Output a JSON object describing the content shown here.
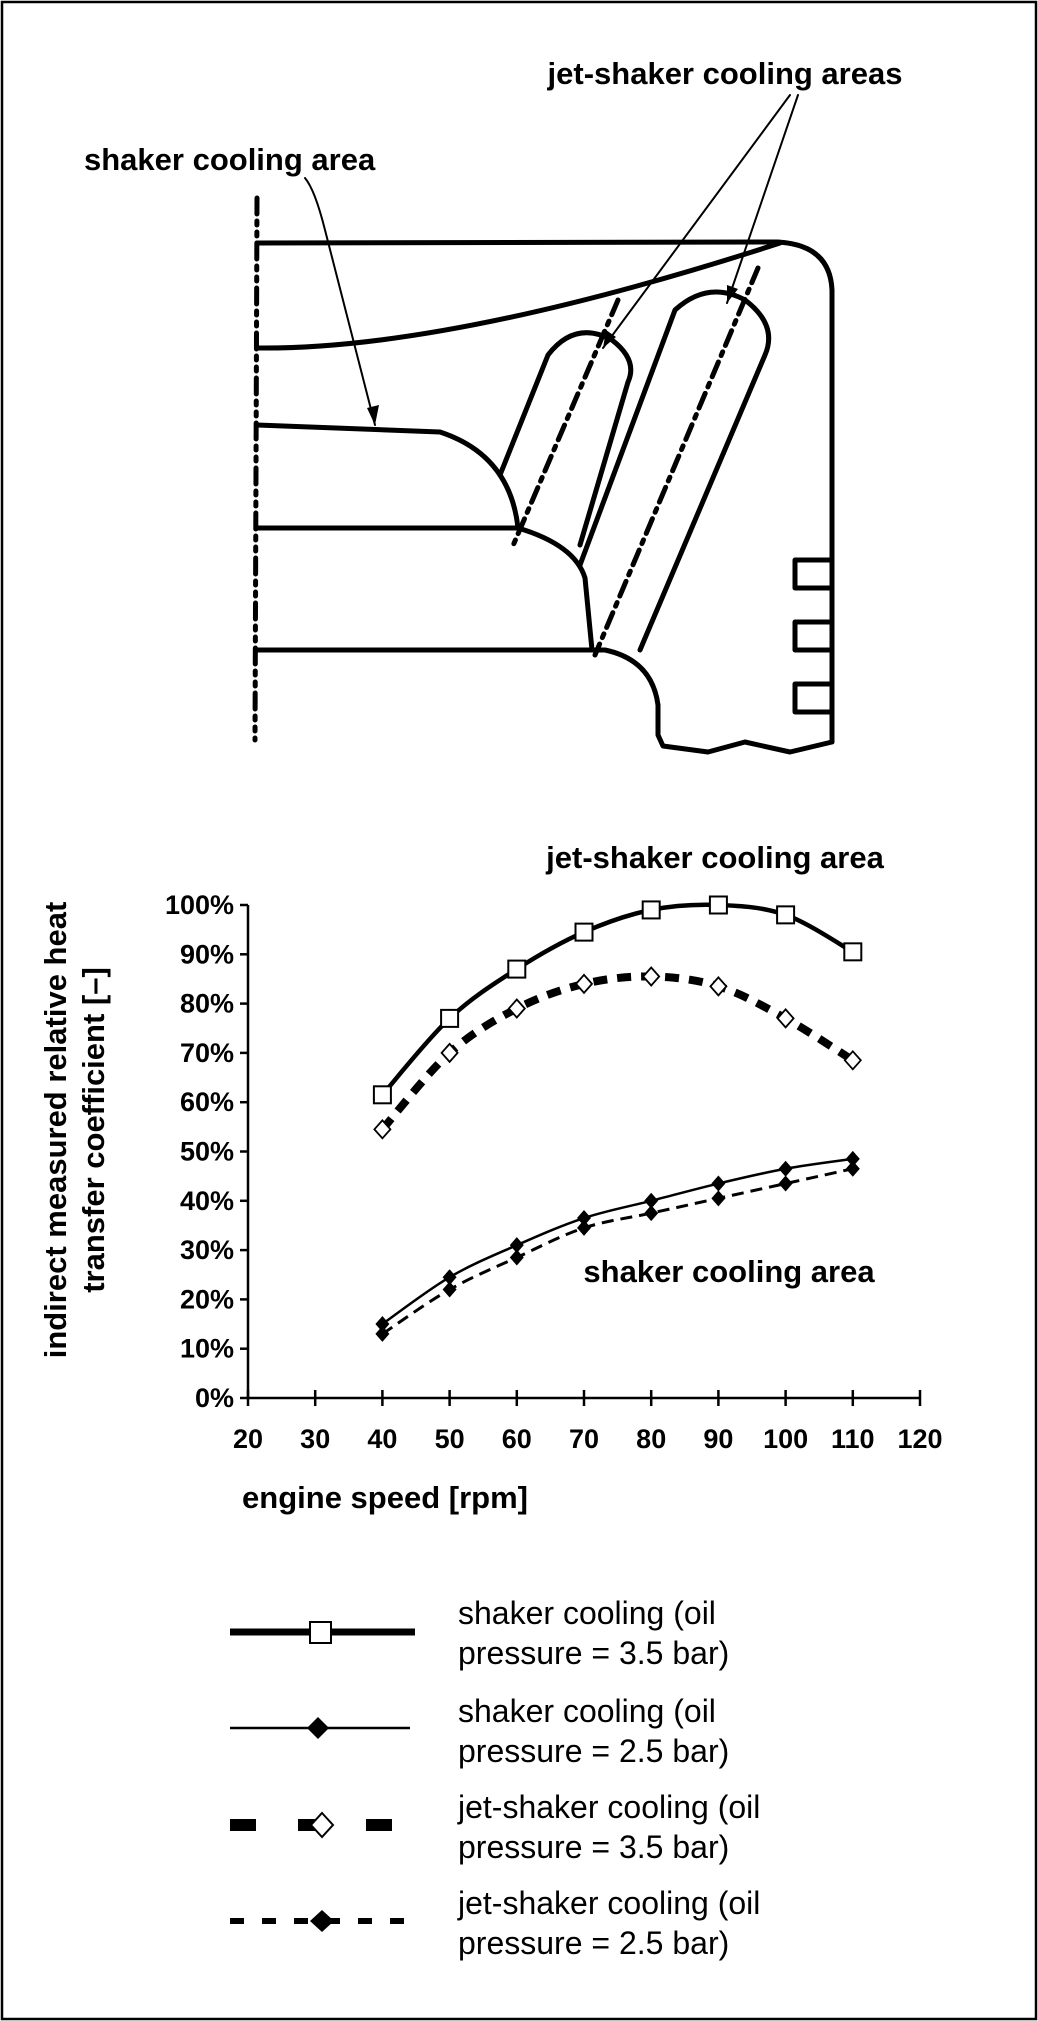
{
  "diagram": {
    "label_jet_shaker": "jet-shaker cooling areas",
    "label_shaker": "shaker cooling area"
  },
  "chart_data": {
    "type": "line",
    "annotations": [
      "jet-shaker cooling area",
      "shaker cooling area"
    ],
    "xlabel": "engine speed [rpm]",
    "ylabel_lines": [
      "indirect measured relative heat",
      "transfer coefficient [–]"
    ],
    "xlim": [
      20,
      120
    ],
    "ylim": [
      0,
      100
    ],
    "x_ticks": [
      20,
      30,
      40,
      50,
      60,
      70,
      80,
      90,
      100,
      110,
      120
    ],
    "x_tick_labels": [
      "20",
      "30",
      "40",
      "50",
      "60",
      "70",
      "80",
      "90",
      "100",
      "110",
      "120"
    ],
    "y_ticks": [
      0,
      10,
      20,
      30,
      40,
      50,
      60,
      70,
      80,
      90,
      100
    ],
    "y_tick_labels": [
      "0%",
      "10%",
      "20%",
      "30%",
      "40%",
      "50%",
      "60%",
      "70%",
      "80%",
      "90%",
      "100%"
    ],
    "x": [
      40,
      50,
      60,
      70,
      80,
      90,
      100,
      110
    ],
    "series": [
      {
        "name": "shaker cooling (oil pressure = 3.5 bar)",
        "legend_lines": [
          "shaker cooling (oil",
          "pressure = 3.5 bar)"
        ],
        "values": [
          61.5,
          77,
          87,
          94.5,
          99,
          100,
          98,
          90.5
        ],
        "line": "solid-thick",
        "marker": "open-square"
      },
      {
        "name": "shaker cooling (oil pressure = 2.5 bar)",
        "legend_lines": [
          "shaker cooling (oil",
          "pressure = 2.5 bar)"
        ],
        "values": [
          15,
          24.5,
          31,
          36.5,
          40,
          43.5,
          46.5,
          48.5
        ],
        "line": "solid-thin",
        "marker": "filled-diamond"
      },
      {
        "name": "jet-shaker cooling (oil pressure = 3.5 bar)",
        "legend_lines": [
          "jet-shaker cooling (oil",
          "pressure = 3.5 bar)"
        ],
        "values": [
          54.5,
          70,
          79,
          84,
          85.5,
          83.5,
          77,
          68.5
        ],
        "line": "dashed-thick",
        "marker": "open-diamond"
      },
      {
        "name": "jet-shaker cooling (oil pressure = 2.5 bar)",
        "legend_lines": [
          "jet-shaker cooling (oil",
          "pressure = 2.5 bar)"
        ],
        "values": [
          13,
          22,
          28.5,
          34.5,
          37.5,
          40.5,
          43.5,
          46.5
        ],
        "line": "dashed-thin",
        "marker": "filled-diamond"
      }
    ],
    "colors": {
      "ink": "#000000",
      "background": "#ffffff"
    }
  }
}
